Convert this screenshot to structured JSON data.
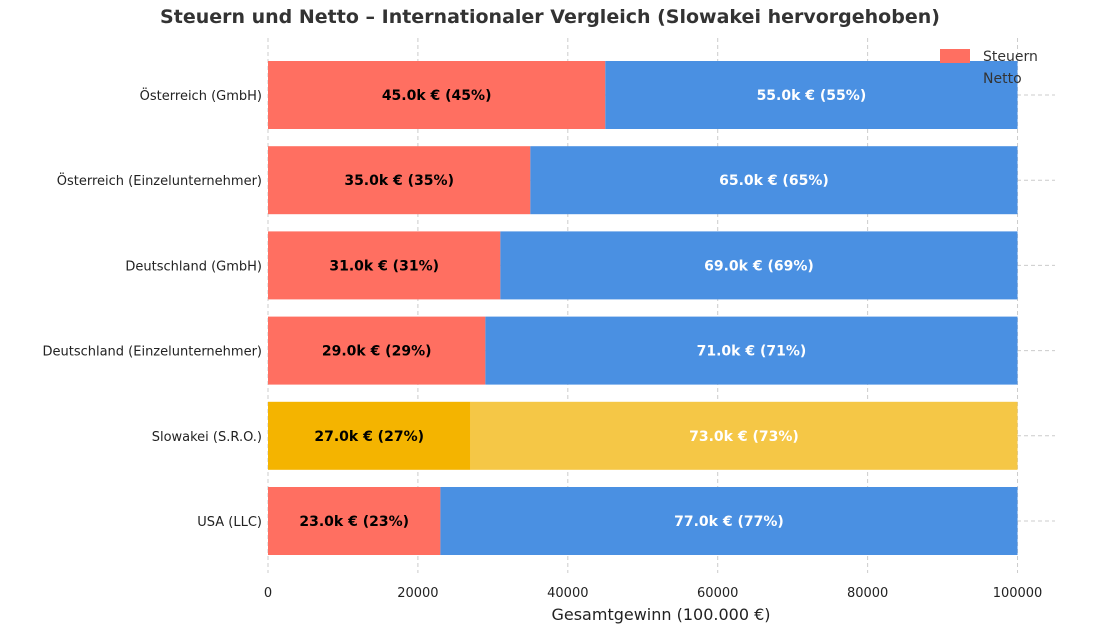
{
  "chart_data": {
    "type": "bar",
    "orientation": "horizontal",
    "stacked": true,
    "title": "Steuern und Netto – Internationaler Vergleich (Slowakei hervorgehoben)",
    "xlabel": "Gesamtgewinn (100.000 €)",
    "ylabel": "",
    "xlim": [
      0,
      105000
    ],
    "xticks": [
      0,
      20000,
      40000,
      60000,
      80000,
      100000
    ],
    "xtick_labels": [
      "0",
      "20000",
      "40000",
      "60000",
      "80000",
      "100000"
    ],
    "grid": true,
    "legend_position": "top-right",
    "categories": [
      "Österreich (GmbH)",
      "Österreich (Einzelunternehmer)",
      "Deutschland (GmbH)",
      "Deutschland (Einzelunternehmer)",
      "Slowakei (S.R.O.)",
      "USA (LLC)"
    ],
    "highlight_category": "Slowakei (S.R.O.)",
    "series": [
      {
        "name": "Steuern",
        "color": "#ff6f61",
        "highlight_color": "#f4b400",
        "values": [
          45000,
          35000,
          31000,
          29000,
          27000,
          23000
        ],
        "labels": [
          "45.0k € (45%)",
          "35.0k € (35%)",
          "31.0k € (31%)",
          "29.0k € (29%)",
          "27.0k € (27%)",
          "23.0k € (23%)"
        ],
        "label_color": "#000000"
      },
      {
        "name": "Netto",
        "color": "#4a90e2",
        "highlight_color": "#f5c746",
        "values": [
          55000,
          65000,
          69000,
          71000,
          73000,
          77000
        ],
        "labels": [
          "55.0k € (55%)",
          "65.0k € (65%)",
          "69.0k € (69%)",
          "71.0k € (71%)",
          "73.0k € (73%)",
          "77.0k € (77%)"
        ],
        "label_color": "#ffffff"
      }
    ]
  }
}
